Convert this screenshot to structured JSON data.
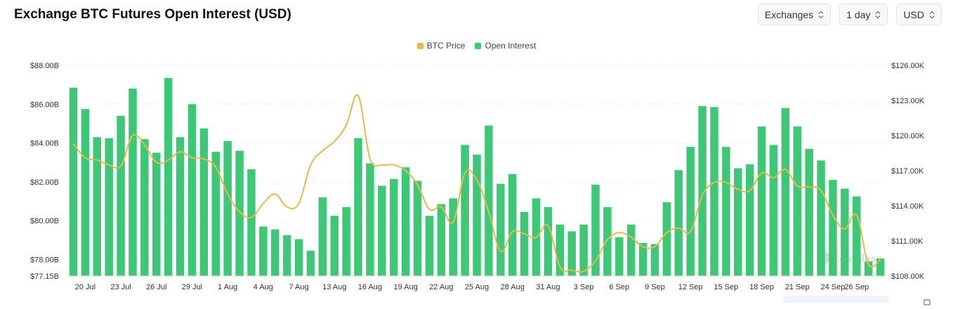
{
  "title": "Exchange BTC Futures Open Interest (USD)",
  "controls": {
    "exchanges": "Exchanges",
    "interval": "1 day",
    "currency": "USD"
  },
  "icons": {
    "select_arrow": "chevron-up-down-icon",
    "watermark": "coinglass-logo"
  },
  "colors": {
    "open_interest": "#3ec776",
    "btc_price": "#e6b94f",
    "grid": "#eeeeee"
  },
  "watermark": "coinglass",
  "legend": [
    {
      "label": "BTC Price",
      "color": "#e6b94f"
    },
    {
      "label": "Open Interest",
      "color": "#3ec776"
    }
  ],
  "chart_data": {
    "type": "bar",
    "legend_position": "top-center",
    "grid": true,
    "y_left": {
      "ticks": [
        "$77.15B",
        "$78.00B",
        "$80.00B",
        "$82.00B",
        "$84.00B",
        "$86.00B",
        "$88.00B"
      ],
      "tick_values": [
        77.15,
        78,
        80,
        82,
        84,
        86,
        88
      ],
      "range": [
        77.15,
        88
      ],
      "unit": "USD billions"
    },
    "y_right": {
      "ticks": [
        "$108.00K",
        "$111.00K",
        "$114.00K",
        "$117.00K",
        "$120.00K",
        "$123.00K",
        "$126.00K"
      ],
      "tick_values": [
        108,
        111,
        114,
        117,
        120,
        123,
        126
      ],
      "range": [
        108,
        126
      ],
      "unit": "USD thousands"
    },
    "x_tick_labels": [
      {
        "label": "20 Jul",
        "index": 1
      },
      {
        "label": "23 Jul",
        "index": 4
      },
      {
        "label": "26 Jul",
        "index": 7
      },
      {
        "label": "29 Jul",
        "index": 10
      },
      {
        "label": "1 Aug",
        "index": 13
      },
      {
        "label": "4 Aug",
        "index": 16
      },
      {
        "label": "7 Aug",
        "index": 19
      },
      {
        "label": "13 Aug",
        "index": 22
      },
      {
        "label": "16 Aug",
        "index": 25
      },
      {
        "label": "19 Aug",
        "index": 28
      },
      {
        "label": "22 Aug",
        "index": 31
      },
      {
        "label": "25 Aug",
        "index": 34
      },
      {
        "label": "28 Aug",
        "index": 37
      },
      {
        "label": "31 Aug",
        "index": 40
      },
      {
        "label": "3 Sep",
        "index": 43
      },
      {
        "label": "6 Sep",
        "index": 46
      },
      {
        "label": "9 Sep",
        "index": 49
      },
      {
        "label": "12 Sep",
        "index": 52
      },
      {
        "label": "15 Sep",
        "index": 55
      },
      {
        "label": "18 Sep",
        "index": 58
      },
      {
        "label": "21 Sep",
        "index": 61
      },
      {
        "label": "24 Sep",
        "index": 64
      },
      {
        "label": "26 Sep",
        "index": 66
      }
    ],
    "series": [
      {
        "name": "Open Interest",
        "kind": "bar",
        "axis": "left",
        "values": [
          86.85,
          85.75,
          84.3,
          84.25,
          85.4,
          86.8,
          84.2,
          83.5,
          87.35,
          84.3,
          86.0,
          84.75,
          83.55,
          84.1,
          83.6,
          82.65,
          79.7,
          79.55,
          79.25,
          79.05,
          78.45,
          81.2,
          80.25,
          80.7,
          84.25,
          82.95,
          81.8,
          82.15,
          82.75,
          82.05,
          80.25,
          80.85,
          81.15,
          83.9,
          83.4,
          84.9,
          81.9,
          82.4,
          80.45,
          81.15,
          80.7,
          79.8,
          79.45,
          79.8,
          81.85,
          80.7,
          79.15,
          79.8,
          78.85,
          78.8,
          80.95,
          82.6,
          83.8,
          85.9,
          85.85,
          83.8,
          82.7,
          82.9,
          84.85,
          83.9,
          85.8,
          84.85,
          83.7,
          83.1,
          82.1,
          81.65,
          81.25,
          77.9,
          78.05
        ]
      },
      {
        "name": "BTC Price",
        "kind": "line",
        "axis": "right",
        "values": [
          119.3,
          118.1,
          117.9,
          117.5,
          117.4,
          120.0,
          119.2,
          117.7,
          117.9,
          118.6,
          118.1,
          118.0,
          117.3,
          115.0,
          113.5,
          113.0,
          114.2,
          115.0,
          113.9,
          114.2,
          117.5,
          118.7,
          119.5,
          120.9,
          123.4,
          118.0,
          117.5,
          117.5,
          117.0,
          115.8,
          113.7,
          113.9,
          112.6,
          116.8,
          116.2,
          113.5,
          110.1,
          111.8,
          111.6,
          111.3,
          112.3,
          108.8,
          108.5,
          108.4,
          109.3,
          111.1,
          111.7,
          111.3,
          110.5,
          110.5,
          111.7,
          112.1,
          111.8,
          114.9,
          116.0,
          116.0,
          115.4,
          115.3,
          116.8,
          116.4,
          117.1,
          115.7,
          115.6,
          115.3,
          113.2,
          112.0,
          113.2,
          109.0,
          109.4
        ]
      }
    ]
  }
}
